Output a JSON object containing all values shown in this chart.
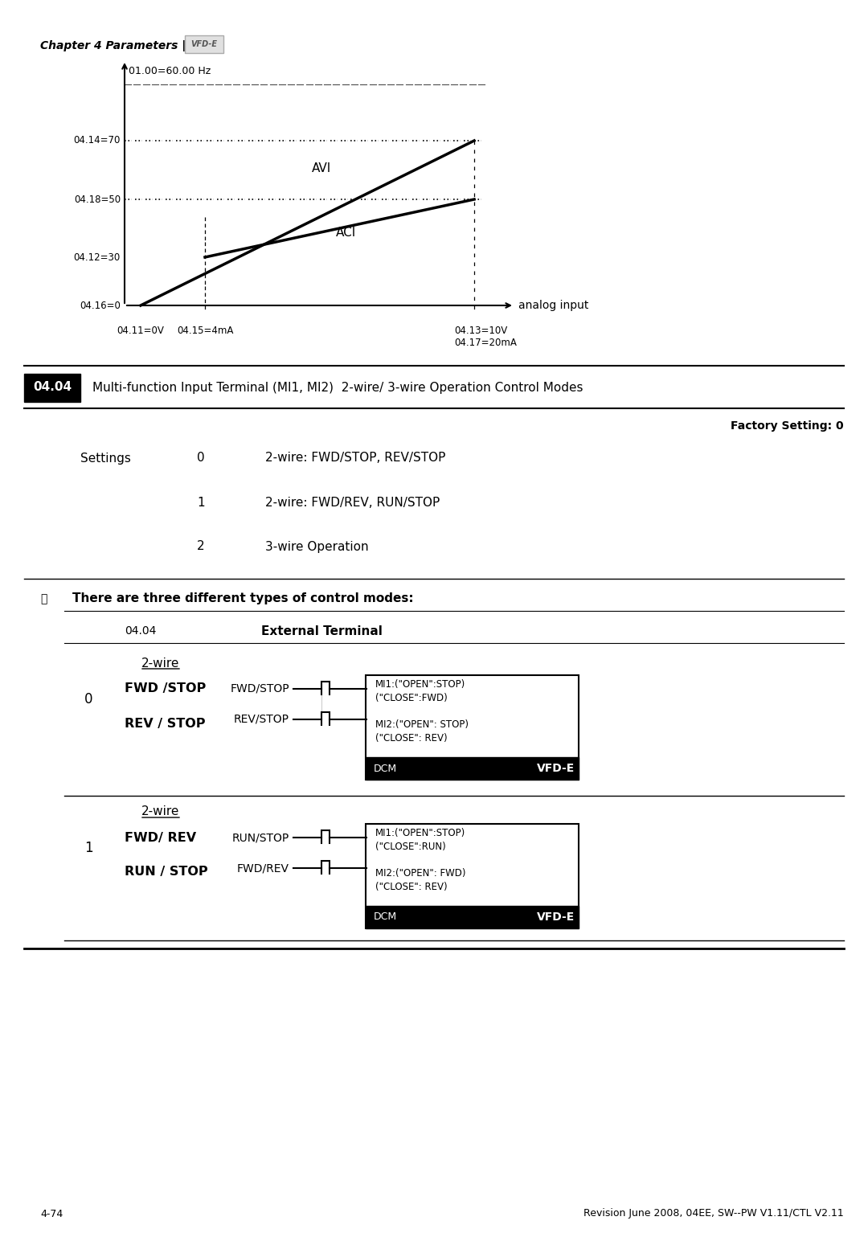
{
  "page_width": 10.8,
  "page_height": 15.34,
  "background": "#ffffff",
  "chapter_header": "Chapter 4 Parameters |",
  "vfd_logo_text": "VFD-E",
  "graph_title": "01.00=60.00 Hz",
  "y_labels": [
    "04.14=70",
    "04.18=50",
    "04.12=30",
    "04.16=0"
  ],
  "x_labels": [
    "04.11=0V",
    "04.15=4mA",
    "04.13=10V\n04.17=20mA"
  ],
  "x_arrow_label": "analog input",
  "line1_label": "AVI",
  "line2_label": "ACI",
  "param_box_label": "04.04",
  "param_box_desc": "Multi-function Input Terminal (MI1, MI2)  2-wire/ 3-wire Operation Control Modes",
  "factory_setting": "Factory Setting: 0",
  "settings_label": "Settings",
  "settings": [
    {
      "num": "0",
      "desc": "2-wire: FWD/STOP, REV/STOP"
    },
    {
      "num": "1",
      "desc": "2-wire: FWD/REV, RUN/STOP"
    },
    {
      "num": "2",
      "desc": "3-wire Operation"
    }
  ],
  "note_text": "There are three different types of control modes:",
  "table_header_col1": "04.04",
  "table_header_col2": "External Terminal",
  "diagram0": {
    "index": "0",
    "wire_label": "2-wire",
    "line1": "FWD /STOP",
    "line2": "REV / STOP",
    "signal1": "FWD/STOP",
    "signal2": "REV/STOP",
    "mi1_text": "MI1:(\"OPEN\":STOP)\n(\"CLOSE\":FWD)",
    "mi2_text": "MI2:(\"OPEN\": STOP)\n(\"CLOSE\": REV)",
    "dcm_text": "DCM",
    "vfd_text": "VFD-E"
  },
  "diagram1": {
    "index": "1",
    "wire_label": "2-wire",
    "line1": "FWD/ REV",
    "line2": "RUN / STOP",
    "signal1": "RUN/STOP",
    "signal2": "FWD/REV",
    "mi1_text": "MI1:(\"OPEN\":STOP)\n(\"CLOSE\":RUN)",
    "mi2_text": "MI2:(\"OPEN\": FWD)\n(\"CLOSE\": REV)",
    "dcm_text": "DCM",
    "vfd_text": "VFD-E"
  },
  "footer_left": "4-74",
  "footer_right": "Revision June 2008, 04EE, SW--PW V1.11/CTL V2.11"
}
